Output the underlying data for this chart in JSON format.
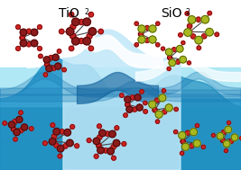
{
  "title_left": "TiO",
  "title_left_sub": "2",
  "title_right": "SiO",
  "title_right_sub": "2",
  "title_fontsize": 10,
  "white_bg": "#ffffff",
  "water_deep": "#1a7ab5",
  "water_mid": "#3aaed4",
  "water_light": "#7ed4ee",
  "water_cyan": "#a8e8f4",
  "tio2_ti_color": "#8b1a1a",
  "tio2_o_color": "#cc2222",
  "sio2_si_color": "#a8b820",
  "sio2_o_color": "#cc2222",
  "bond_color": "#444444"
}
